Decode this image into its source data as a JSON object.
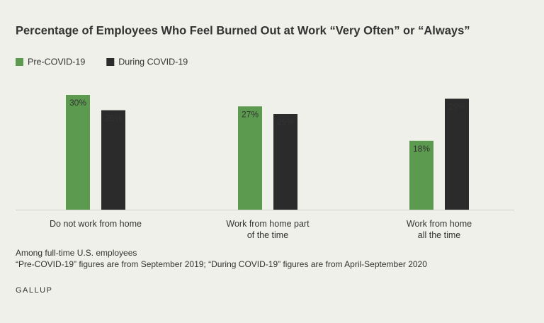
{
  "chart_data": {
    "type": "bar",
    "title": "Percentage of Employees Who Feel Burned Out at Work “Very Often” or “Always”",
    "categories": [
      "Do not work from home",
      "Work from home part\nof the time",
      "Work from home\nall the time"
    ],
    "series": [
      {
        "name": "Pre-COVID-19",
        "color": "#5c9b4f",
        "values": [
          30,
          27,
          18
        ],
        "value_labels": [
          "30%",
          "27%",
          "18%"
        ]
      },
      {
        "name": "During COVID-19",
        "color": "#2b2b2b",
        "values": [
          26,
          25,
          29
        ],
        "value_labels": [
          "26%",
          "25%",
          "29%"
        ]
      }
    ],
    "notes": [
      "Among full-time U.S. employees",
      "“Pre-COVID-19” figures are from September 2019; “During COVID-19” figures are from April-September 2020"
    ],
    "source": "GALLUP"
  }
}
